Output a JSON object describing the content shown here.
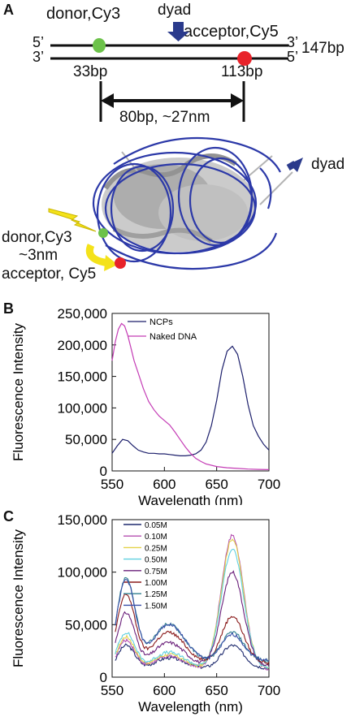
{
  "panel_a": {
    "letter": "A",
    "strand_top_5": "5’",
    "strand_top_3": "3’",
    "strand_bot_3": "3’",
    "strand_bot_5": "5’",
    "length_label": "147bp",
    "donor_label": "donor,Cy3",
    "acceptor_label": "acceptor,Cy5",
    "dyad_label": "dyad",
    "donor_pos_label": "33bp",
    "acceptor_pos_label": "113bp",
    "distance_label": "80bp, ~27nm",
    "colors": {
      "donor": "#6cc24a",
      "acceptor": "#e8232a",
      "dyad_arrow": "#2a3a8c",
      "dna": "#2c39a8",
      "protein": "#b8b8b8",
      "lightning": "#f4e21a"
    },
    "structure": {
      "dyad_label": "dyad",
      "donor_label": "donor,Cy3",
      "fret_distance_label": "~3nm",
      "acceptor_label": "acceptor, Cy5"
    }
  },
  "chart_b_letter": "B",
  "chart_c_letter": "C",
  "chart_data": [
    {
      "type": "line",
      "ylabel": "Fluorescence Intensity",
      "xlabel": "Wavelength (nm)",
      "xlim": [
        550,
        700
      ],
      "ylim": [
        0,
        250000
      ],
      "xticks": [
        "550",
        "600",
        "650",
        "700"
      ],
      "yticks": [
        "0",
        "50,000",
        "100,000",
        "150,000",
        "200,000",
        "250,000"
      ],
      "legend_position": "top-left",
      "series": [
        {
          "name": "NCPs",
          "color": "#1c1f6b",
          "x": [
            550,
            555,
            560,
            565,
            570,
            575,
            580,
            585,
            590,
            595,
            600,
            605,
            610,
            615,
            620,
            625,
            630,
            635,
            640,
            645,
            650,
            655,
            660,
            665,
            670,
            675,
            680,
            685,
            690,
            695,
            700
          ],
          "y": [
            28000,
            40000,
            50000,
            48000,
            40000,
            33000,
            30000,
            28000,
            28000,
            27000,
            27000,
            26000,
            25000,
            24000,
            24000,
            25000,
            27000,
            33000,
            46000,
            72000,
            112000,
            160000,
            190000,
            198000,
            185000,
            150000,
            105000,
            72000,
            55000,
            42000,
            33000
          ]
        },
        {
          "name": "Naked DNA",
          "color": "#c43cb5",
          "x": [
            550,
            553,
            556,
            559,
            562,
            565,
            568,
            571,
            575,
            580,
            585,
            590,
            595,
            600,
            605,
            610,
            615,
            620,
            625,
            630,
            635,
            640,
            650,
            660,
            670,
            680,
            690,
            700
          ],
          "y": [
            175000,
            205000,
            225000,
            234000,
            230000,
            215000,
            195000,
            175000,
            155000,
            130000,
            110000,
            97000,
            87000,
            80000,
            73000,
            62000,
            50000,
            38000,
            28000,
            20000,
            15000,
            11000,
            7000,
            5000,
            4000,
            3000,
            2500,
            2000
          ]
        }
      ]
    },
    {
      "type": "line",
      "ylabel": "Fluorescence Intensity",
      "xlabel": "Wavelength (nm)",
      "xlim": [
        550,
        700
      ],
      "ylim": [
        0,
        150000
      ],
      "xticks": [
        "550",
        "600",
        "650",
        "700"
      ],
      "yticks": [
        "0",
        "50,000",
        "100,000",
        "150,000"
      ],
      "legend_position": "top-left",
      "series": [
        {
          "name": "0.05M",
          "color": "#1e2a6e",
          "peak_donor": 28000,
          "valley": 14000,
          "peak_acceptor": 22000
        },
        {
          "name": "0.10M",
          "color": "#b44fb0",
          "peak_donor": 33000,
          "valley": 12000,
          "peak_acceptor": 128000
        },
        {
          "name": "0.25M",
          "color": "#e3d24a",
          "peak_donor": 36000,
          "valley": 13000,
          "peak_acceptor": 124000
        },
        {
          "name": "0.50M",
          "color": "#5fd0e0",
          "peak_donor": 40000,
          "valley": 14000,
          "peak_acceptor": 114000
        },
        {
          "name": "0.75M",
          "color": "#6a1f7a",
          "peak_donor": 58000,
          "valley": 17000,
          "peak_acceptor": 90000
        },
        {
          "name": "1.00M",
          "color": "#8a1a1a",
          "peak_donor": 75000,
          "valley": 22000,
          "peak_acceptor": 45000
        },
        {
          "name": "1.25M",
          "color": "#2f7f8f",
          "peak_donor": 90000,
          "valley": 25000,
          "peak_acceptor": 28000
        },
        {
          "name": "1.50M",
          "color": "#3a4fa8",
          "peak_donor": 88000,
          "valley": 26000,
          "peak_acceptor": 25000
        }
      ]
    }
  ]
}
